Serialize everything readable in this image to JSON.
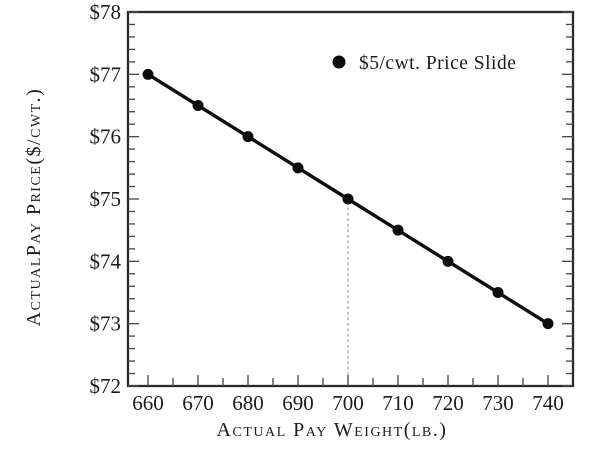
{
  "figure": {
    "background": "#ffffff",
    "ink_color": "#141414",
    "axis_color": "#2a2a2a",
    "tick_color": "#4a4a4a",
    "dashed_line_color": "#a8a8a8"
  },
  "chart_data": {
    "type": "line",
    "title": "",
    "xlabel": "Actual Pay Weight(lb.)",
    "ylabel": "ActualPay Price($/cwt.)",
    "x": [
      660,
      670,
      680,
      690,
      700,
      710,
      720,
      730,
      740
    ],
    "series": [
      {
        "name": "$5/cwt. Price Slide",
        "values": [
          77.0,
          76.5,
          76.0,
          75.5,
          75.0,
          74.5,
          74.0,
          73.5,
          73.0
        ],
        "color": "#0d0d0d",
        "marker": "filled-circle"
      }
    ],
    "xlim": [
      656,
      745
    ],
    "ylim": [
      72,
      78
    ],
    "x_major_ticks": [
      660,
      670,
      680,
      690,
      700,
      710,
      720,
      730,
      740
    ],
    "x_minor_tick_step": 5,
    "y_major_ticks": [
      72,
      73,
      74,
      75,
      76,
      77,
      78
    ],
    "y_minor_tick_step": 0.2,
    "y_tick_label_prefix": "$",
    "grid": false,
    "legend": {
      "position": "inside-top-right",
      "entries": [
        "$5/cwt. Price Slide"
      ]
    },
    "annotations": [
      {
        "type": "vertical-dashed-line",
        "x": 700,
        "from_y": 72,
        "to_y": 75
      }
    ]
  }
}
